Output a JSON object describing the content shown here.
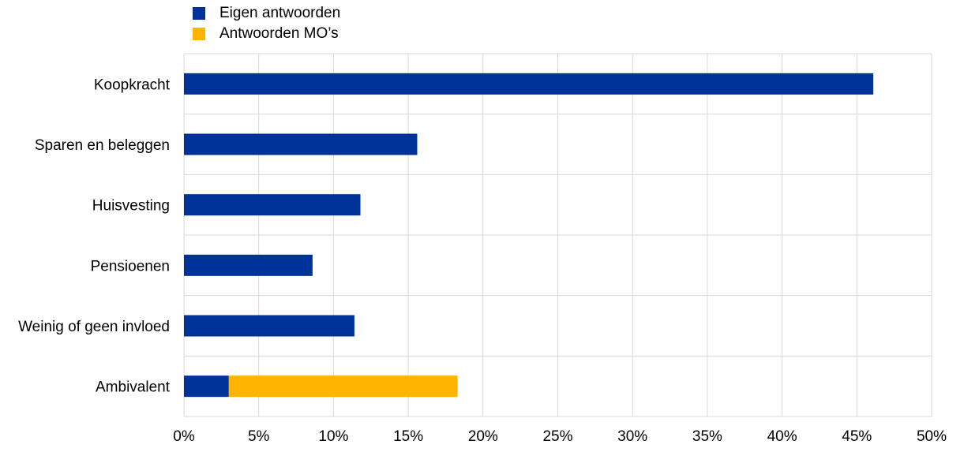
{
  "chart_data": {
    "type": "bar",
    "orientation": "horizontal",
    "stacked": true,
    "categories": [
      "Koopkracht",
      "Sparen en beleggen",
      "Huisvesting",
      "Pensioenen",
      "Weinig of geen invloed",
      "Ambivalent"
    ],
    "series": [
      {
        "name": "Eigen antwoorden",
        "color": "#003399",
        "values": [
          46.1,
          15.6,
          11.8,
          8.6,
          11.4,
          3.0
        ]
      },
      {
        "name": "Antwoorden MO’s",
        "color": "#FFB400",
        "values": [
          0,
          0,
          0,
          0,
          0,
          15.3
        ]
      }
    ],
    "xlim": [
      0,
      50
    ],
    "xticks": [
      "0%",
      "5%",
      "10%",
      "15%",
      "20%",
      "25%",
      "30%",
      "35%",
      "40%",
      "45%",
      "50%"
    ],
    "grid": true,
    "legend_position": "top-left"
  }
}
